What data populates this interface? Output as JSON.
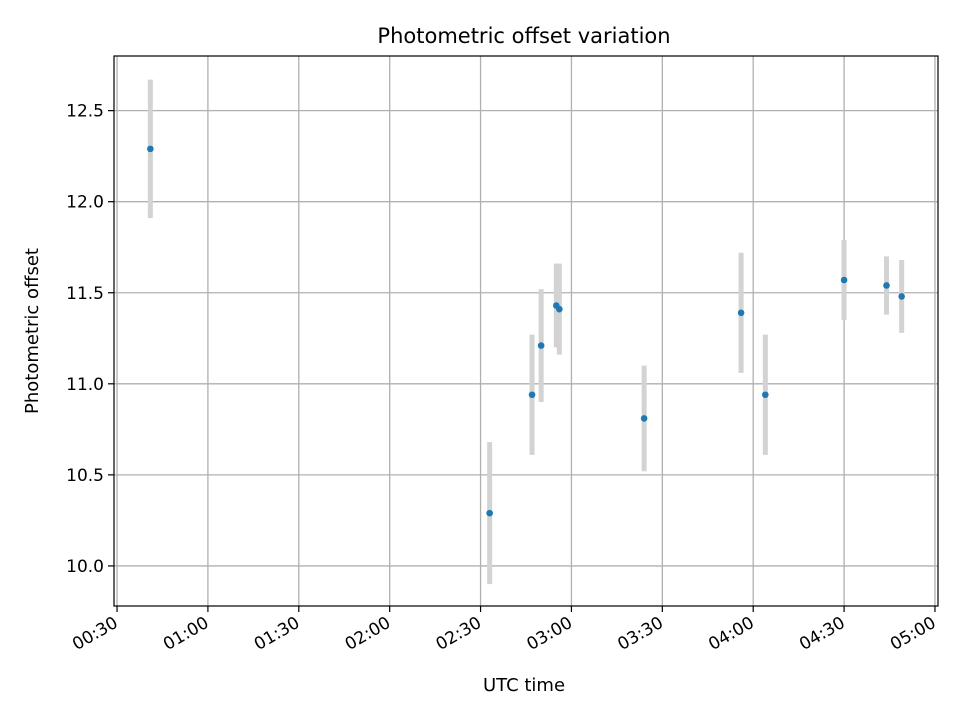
{
  "chart_data": {
    "type": "scatter",
    "title": "Photometric offset variation",
    "xlabel": "UTC time",
    "ylabel": "Photometric offset",
    "x_tick_labels": [
      "00:30",
      "01:00",
      "01:30",
      "02:00",
      "02:30",
      "03:00",
      "03:30",
      "04:00",
      "04:30",
      "05:00"
    ],
    "y_tick_labels": [
      "10.0",
      "10.5",
      "11.0",
      "11.5",
      "12.0",
      "12.5"
    ],
    "xlim": [
      "00:29",
      "05:01"
    ],
    "ylim": [
      9.78,
      12.8
    ],
    "grid": true,
    "series": [
      {
        "points": [
          {
            "x": "00:41",
            "y": 12.29,
            "yerr": 0.38
          },
          {
            "x": "02:33",
            "y": 10.29,
            "yerr": 0.39
          },
          {
            "x": "02:47",
            "y": 10.94,
            "yerr": 0.33
          },
          {
            "x": "02:50",
            "y": 11.21,
            "yerr": 0.31
          },
          {
            "x": "02:55",
            "y": 11.43,
            "yerr": 0.23
          },
          {
            "x": "02:56",
            "y": 11.41,
            "yerr": 0.25
          },
          {
            "x": "03:24",
            "y": 10.81,
            "yerr": 0.29
          },
          {
            "x": "03:56",
            "y": 11.39,
            "yerr": 0.33
          },
          {
            "x": "04:04",
            "y": 10.94,
            "yerr": 0.33
          },
          {
            "x": "04:30",
            "y": 11.57,
            "yerr": 0.22
          },
          {
            "x": "04:44",
            "y": 11.54,
            "yerr": 0.16
          },
          {
            "x": "04:49",
            "y": 11.48,
            "yerr": 0.2
          }
        ]
      }
    ],
    "colors": {
      "point": "#1f77b4",
      "errorbar": "#d3d3d3",
      "grid": "#b0b0b0",
      "axes": "#000000"
    }
  }
}
